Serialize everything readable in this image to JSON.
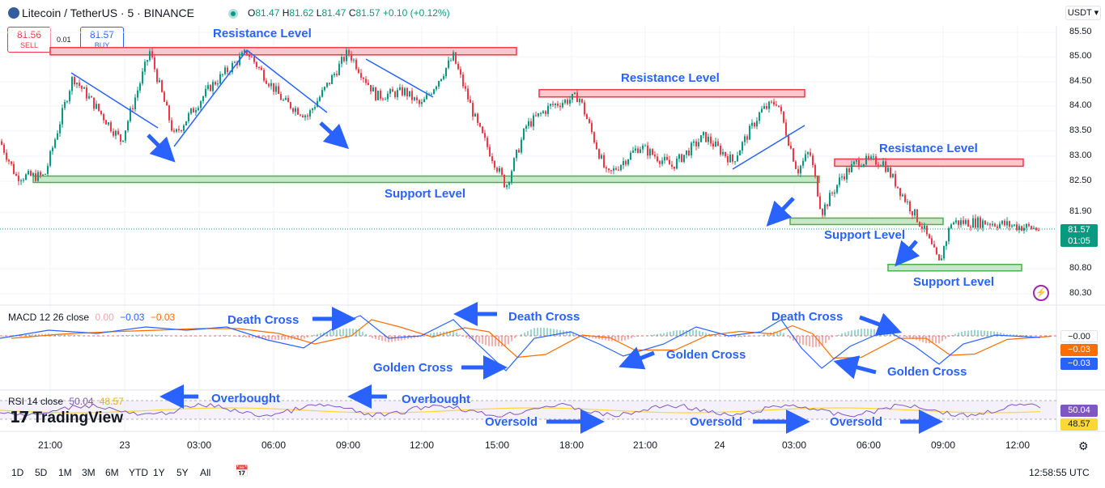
{
  "header": {
    "symbol_title": "Litecoin / TetherUS · 5 · BINANCE",
    "ohlc": {
      "o_label": "O",
      "o": "81.47",
      "h_label": "H",
      "h": "81.62",
      "l_label": "L",
      "l": "81.47",
      "c_label": "C",
      "c": "81.57",
      "change": "+0.10 (+0.12%)"
    },
    "sell_price": "81.56",
    "sell_label": "SELL",
    "buy_price": "81.57",
    "buy_label": "BUY",
    "spread": "0.01",
    "currency": "USDT ▾"
  },
  "colors": {
    "up": "#089981",
    "down": "#f23645",
    "accent": "#2962ff",
    "macd": "#2962ff",
    "signal": "#ff6d00",
    "rsi": "#7e57c2",
    "rsi_ma": "#fdd835"
  },
  "price_axis": {
    "ticks": [
      "85.50",
      "85.00",
      "84.50",
      "84.00",
      "83.50",
      "83.00",
      "82.50",
      "81.90",
      "80.80",
      "80.30"
    ],
    "current_price": "81.57",
    "countdown": "01:05"
  },
  "time_axis": {
    "ticks": [
      "21:00",
      "23",
      "03:00",
      "06:00",
      "09:00",
      "12:00",
      "15:00",
      "18:00",
      "21:00",
      "24",
      "03:00",
      "06:00",
      "09:00",
      "12:00"
    ]
  },
  "timeframes": [
    "1D",
    "5D",
    "1M",
    "3M",
    "6M",
    "YTD",
    "1Y",
    "5Y",
    "All"
  ],
  "clock": "12:58:55 UTC",
  "logo_text": "TradingView",
  "macd": {
    "label": "MACD 12 26 close",
    "v1": "0.00",
    "v2": "−0.03",
    "v3": "−0.03",
    "axis": [
      "−0.00",
      "−0.03",
      "−0.03"
    ]
  },
  "rsi": {
    "label": "RSI 14 close",
    "v1": "50.04",
    "v2": "48.57",
    "axis": [
      "50.04",
      "48.57"
    ]
  },
  "annotations": {
    "resistance": [
      "Resistance Level",
      "Resistance Level",
      "Resistance Level"
    ],
    "support": [
      "Support Level",
      "Support Level",
      "Support Level"
    ],
    "death_cross": [
      "Death Cross",
      "Death Cross",
      "Death Cross"
    ],
    "golden_cross": [
      "Golden Cross",
      "Golden Cross",
      "Golden Cross"
    ],
    "overbought": [
      "Overbought",
      "Overbought"
    ],
    "oversold": [
      "Oversold",
      "Oversold",
      "Oversold"
    ]
  },
  "chart_data": {
    "type": "candlestick",
    "title": "Litecoin / TetherUS · 5 · BINANCE",
    "ylim": [
      80.2,
      85.6
    ],
    "x_ticks": [
      "21:00",
      "23",
      "03:00",
      "06:00",
      "09:00",
      "12:00",
      "15:00",
      "18:00",
      "21:00",
      "24",
      "03:00",
      "06:00",
      "09:00",
      "12:00"
    ],
    "close_path": [
      [
        0,
        83.3
      ],
      [
        20,
        82.6
      ],
      [
        55,
        82.6
      ],
      [
        90,
        84.6
      ],
      [
        150,
        83.3
      ],
      [
        185,
        85.1
      ],
      [
        215,
        83.4
      ],
      [
        260,
        84.4
      ],
      [
        305,
        85.1
      ],
      [
        350,
        84.1
      ],
      [
        380,
        83.8
      ],
      [
        430,
        85.1
      ],
      [
        465,
        84.2
      ],
      [
        500,
        84.3
      ],
      [
        520,
        84.0
      ],
      [
        560,
        85.0
      ],
      [
        590,
        83.6
      ],
      [
        625,
        82.4
      ],
      [
        650,
        83.6
      ],
      [
        680,
        84.0
      ],
      [
        715,
        84.2
      ],
      [
        750,
        82.6
      ],
      [
        790,
        83.2
      ],
      [
        830,
        82.8
      ],
      [
        870,
        83.4
      ],
      [
        905,
        82.9
      ],
      [
        940,
        83.9
      ],
      [
        960,
        84.1
      ],
      [
        985,
        82.7
      ],
      [
        1000,
        83.1
      ],
      [
        1015,
        81.9
      ],
      [
        1040,
        82.6
      ],
      [
        1060,
        82.9
      ],
      [
        1090,
        82.9
      ],
      [
        1120,
        82.1
      ],
      [
        1140,
        81.6
      ],
      [
        1160,
        80.9
      ],
      [
        1175,
        81.7
      ],
      [
        1220,
        81.7
      ],
      [
        1285,
        81.57
      ]
    ],
    "resistance_levels": [
      85.12,
      84.27,
      82.88
    ],
    "support_levels": [
      82.54,
      81.72,
      80.82
    ],
    "macd": {
      "name": "MACD 12 26 close",
      "values_shown": {
        "macd": -0.03,
        "signal": -0.03,
        "histogram": 0.0
      }
    },
    "rsi": {
      "name": "RSI 14 close",
      "values_shown": {
        "rsi": 50.04,
        "rsi_ma": 48.57
      }
    }
  }
}
